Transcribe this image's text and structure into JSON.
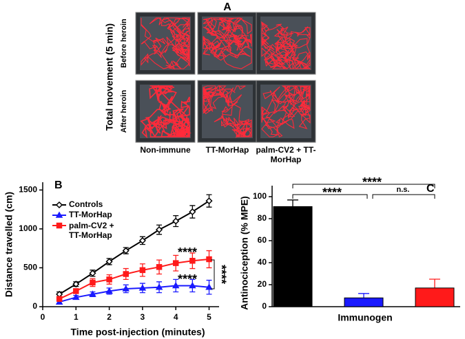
{
  "chart_data": [
    {
      "type": "image_grid",
      "panel": "A",
      "ylabel": "Total movement (5 min)",
      "row_labels": [
        "Before heroin",
        "After heroin"
      ],
      "column_labels": [
        "Non-immune",
        "TT-MorHap",
        "palm-CV2 + TT-MorHap"
      ]
    },
    {
      "type": "line",
      "panel": "B",
      "xlabel": "Time post-injection (minutes)",
      "ylabel": "Distance travelled (cm)",
      "x": [
        0.5,
        1,
        1.5,
        2,
        2.5,
        3,
        3.5,
        4,
        4.5,
        5
      ],
      "series": [
        {
          "name": "Controls",
          "color": "#000000",
          "marker": "diamond",
          "values": [
            160,
            290,
            430,
            580,
            720,
            850,
            990,
            1100,
            1220,
            1360
          ],
          "errors": [
            30,
            30,
            40,
            40,
            40,
            50,
            60,
            70,
            80,
            80
          ]
        },
        {
          "name": "TT-MorHap",
          "color": "#1a1aff",
          "marker": "triangle",
          "values": [
            60,
            120,
            160,
            200,
            230,
            240,
            250,
            270,
            270,
            250
          ],
          "errors": [
            20,
            25,
            30,
            40,
            50,
            60,
            70,
            80,
            80,
            90
          ]
        },
        {
          "name": "palm-CV2 + TT-MorHap",
          "color": "#ff1a1a",
          "marker": "square",
          "values": [
            100,
            200,
            310,
            350,
            420,
            470,
            510,
            560,
            590,
            610
          ],
          "errors": [
            20,
            30,
            50,
            60,
            70,
            80,
            90,
            100,
            100,
            110
          ]
        }
      ],
      "xlim": [
        0,
        5.3
      ],
      "xticks": [
        0,
        1,
        2,
        3,
        4,
        5
      ],
      "ylim": [
        0,
        1600
      ],
      "yticks": [
        0,
        500,
        1000,
        1500
      ],
      "annotations": [
        "****",
        "****",
        "****"
      ],
      "legend": "upper left"
    },
    {
      "type": "bar",
      "panel": "C",
      "xlabel": "Immunogen",
      "ylabel": "Antinociception (% MPE)",
      "categories": [
        null,
        null,
        null
      ],
      "values": [
        91,
        8,
        17
      ],
      "errors": [
        6,
        4,
        8
      ],
      "colors": [
        "#000000",
        "#1a1aff",
        "#ff1a1a"
      ],
      "ylim": [
        0,
        110
      ],
      "yticks": [
        0,
        20,
        40,
        60,
        80,
        100
      ],
      "annotations": [
        "****",
        "****",
        "n.s."
      ]
    }
  ]
}
